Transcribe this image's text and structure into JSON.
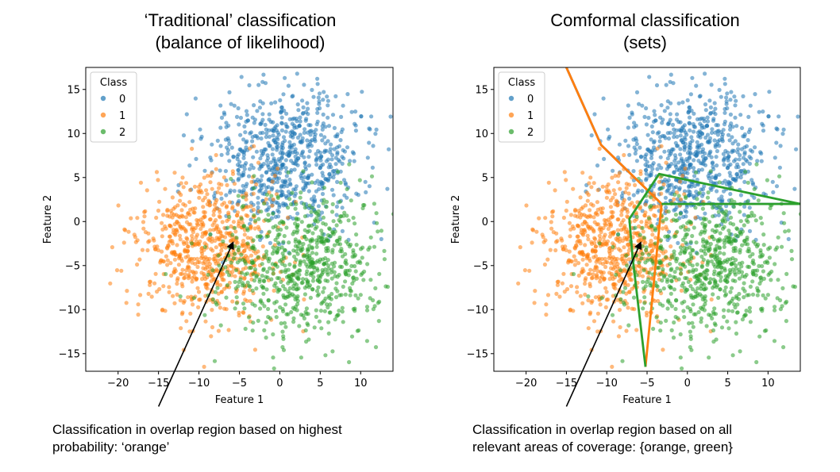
{
  "titles": {
    "left_line1": "‘Traditional’ classification",
    "left_line2": "(balance of likelihood)",
    "right_line1": "Comformal classification",
    "right_line2": "(sets)"
  },
  "captions": {
    "left_line1": "Classification in overlap region based on highest",
    "left_line2": "probability: ‘orange’",
    "right_line1": "Classification in overlap region based on all",
    "right_line2": "relevant areas of coverage: {orange, green}"
  },
  "colors": {
    "class0": "#1f77b4",
    "class1": "#ff7f0e",
    "class2": "#2ca02c",
    "boundary_blue": "#3a5fa8",
    "boundary_orange": "#ff7f0e",
    "boundary_green": "#2ca02c"
  },
  "chart_data": [
    {
      "type": "scatter",
      "title": "‘Traditional’ classification (balance of likelihood)",
      "xlabel": "Feature 1",
      "ylabel": "Feature 2",
      "xlim": [
        -24,
        14
      ],
      "ylim": [
        -17,
        17.5
      ],
      "xticks": [
        -20,
        -15,
        -10,
        -5,
        0,
        5,
        10
      ],
      "yticks": [
        -15,
        -10,
        -5,
        0,
        5,
        10,
        15
      ],
      "xtick_labels": [
        "−20",
        "−15",
        "−10",
        "−5",
        "0",
        "5",
        "10"
      ],
      "ytick_labels": [
        "−15",
        "−10",
        "−5",
        "0",
        "5",
        "10",
        "15"
      ],
      "legend": {
        "title": "Class",
        "placement": "top-left",
        "entries": [
          "0",
          "1",
          "2"
        ]
      },
      "series": [
        {
          "name": "0",
          "center": [
            1,
            7
          ],
          "spread": [
            5,
            4
          ],
          "count": 700
        },
        {
          "name": "1",
          "center": [
            -9,
            -3
          ],
          "spread": [
            4.5,
            4
          ],
          "count": 700
        },
        {
          "name": "2",
          "center": [
            3,
            -5
          ],
          "spread": [
            5,
            4
          ],
          "count": 700
        }
      ],
      "arrow": {
        "from": [
          -15,
          -21
        ],
        "to": [
          -5.8,
          -2.4
        ]
      }
    },
    {
      "type": "scatter",
      "title": "Comformal classification (sets)",
      "xlabel": "Feature 1",
      "ylabel": "Feature 2",
      "xlim": [
        -24,
        14
      ],
      "ylim": [
        -17,
        17.5
      ],
      "xticks": [
        -20,
        -15,
        -10,
        -5,
        0,
        5,
        10
      ],
      "yticks": [
        -15,
        -10,
        -5,
        0,
        5,
        10,
        15
      ],
      "xtick_labels": [
        "−20",
        "−15",
        "−10",
        "−5",
        "0",
        "5",
        "10"
      ],
      "ytick_labels": [
        "−15",
        "−10",
        "−5",
        "0",
        "5",
        "10",
        "15"
      ],
      "legend": {
        "title": "Class",
        "placement": "top-left",
        "entries": [
          "0",
          "1",
          "2"
        ]
      },
      "series": [
        {
          "name": "0",
          "center": [
            1,
            7
          ],
          "spread": [
            5,
            4
          ],
          "count": 700
        },
        {
          "name": "1",
          "center": [
            -9,
            -3
          ],
          "spread": [
            4.5,
            4
          ],
          "count": 700
        },
        {
          "name": "2",
          "center": [
            3,
            -5
          ],
          "spread": [
            5,
            4
          ],
          "count": 700
        }
      ],
      "boundaries": [
        {
          "class": "0",
          "points": [
            [
              -15,
              17.5
            ],
            [
              -10.7,
              8.7
            ],
            [
              -3.2,
              2
            ],
            [
              14,
              2
            ]
          ]
        },
        {
          "class": "1",
          "points": [
            [
              -15,
              17.5
            ],
            [
              -10.7,
              8.7
            ],
            [
              -3.2,
              2
            ],
            [
              -5.2,
              -16.5
            ]
          ]
        },
        {
          "class": "2",
          "points": [
            [
              -5.2,
              -16.5
            ],
            [
              -6.8,
              -4
            ],
            [
              -7.2,
              0.3
            ],
            [
              -3.5,
              5.4
            ],
            [
              14,
              2
            ],
            [
              -3.2,
              2
            ]
          ]
        }
      ],
      "arrow": {
        "from": [
          -15,
          -21
        ],
        "to": [
          -5.8,
          -2.4
        ]
      }
    }
  ]
}
